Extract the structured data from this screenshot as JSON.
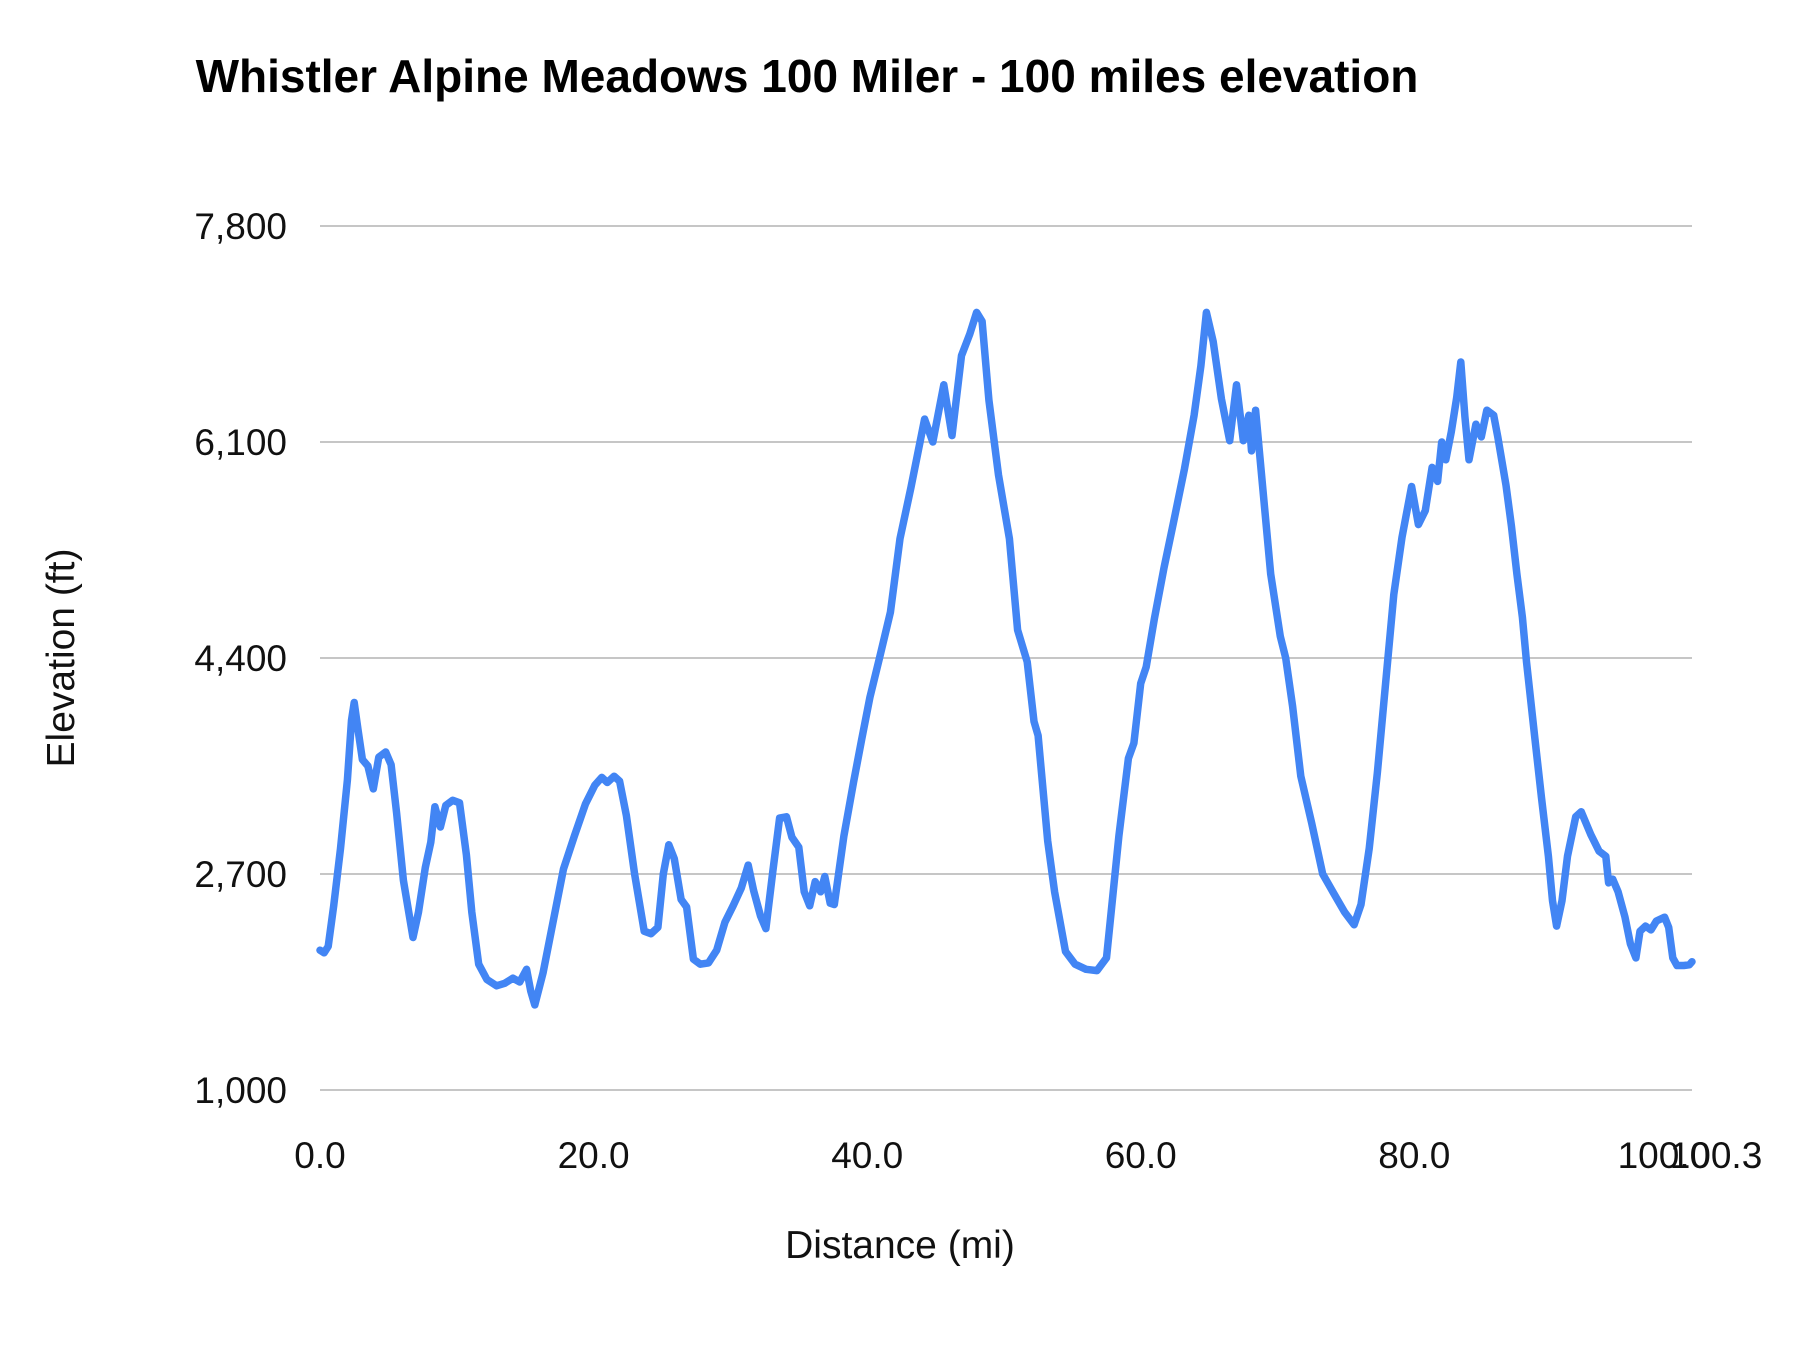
{
  "title": "Whistler Alpine Meadows 100 Miler - 100 miles elevation",
  "chart_data": {
    "type": "line",
    "title": "Whistler Alpine Meadows 100 Miler - 100 miles elevation",
    "xlabel": "Distance (mi)",
    "ylabel": "Elevation (ft)",
    "xlim": [
      0,
      100.3
    ],
    "ylim": [
      1000,
      7800
    ],
    "grid": true,
    "legend": "none",
    "colors": {
      "line": "#4285f4",
      "gridline": "#c6c6c6",
      "text": "#111111",
      "title": "#000000",
      "background": "#ffffff"
    },
    "y_ticks": [
      {
        "value": 1000,
        "label": "1,000"
      },
      {
        "value": 2700,
        "label": "2,700"
      },
      {
        "value": 4400,
        "label": "4,400"
      },
      {
        "value": 6100,
        "label": "6,100"
      },
      {
        "value": 7800,
        "label": "7,800"
      }
    ],
    "x_ticks": [
      {
        "value": 0,
        "label": "0.0",
        "dx": 0
      },
      {
        "value": 20,
        "label": "20.0",
        "dx": 0
      },
      {
        "value": 40,
        "label": "40.0",
        "dx": 0
      },
      {
        "value": 60,
        "label": "60.0",
        "dx": 0
      },
      {
        "value": 80,
        "label": "80.0",
        "dx": 0
      },
      {
        "value": 100,
        "label": "100.0",
        "dx": -24
      },
      {
        "value": 100.3,
        "label": "100.3",
        "dx": 24
      }
    ],
    "series": [
      {
        "name": "elevation",
        "points": [
          [
            0,
            2100
          ],
          [
            0.3,
            2080
          ],
          [
            0.6,
            2130
          ],
          [
            1.0,
            2450
          ],
          [
            1.5,
            2900
          ],
          [
            2.0,
            3440
          ],
          [
            2.3,
            3910
          ],
          [
            2.5,
            4050
          ],
          [
            2.8,
            3820
          ],
          [
            3.1,
            3600
          ],
          [
            3.5,
            3550
          ],
          [
            3.9,
            3370
          ],
          [
            4.3,
            3620
          ],
          [
            4.8,
            3660
          ],
          [
            5.2,
            3560
          ],
          [
            5.6,
            3180
          ],
          [
            6.1,
            2650
          ],
          [
            6.8,
            2200
          ],
          [
            7.2,
            2400
          ],
          [
            7.7,
            2750
          ],
          [
            8.1,
            2950
          ],
          [
            8.4,
            3230
          ],
          [
            8.8,
            3070
          ],
          [
            9.2,
            3240
          ],
          [
            9.7,
            3280
          ],
          [
            10.2,
            3260
          ],
          [
            10.7,
            2850
          ],
          [
            11.1,
            2400
          ],
          [
            11.6,
            1990
          ],
          [
            12.2,
            1870
          ],
          [
            12.9,
            1820
          ],
          [
            13.5,
            1840
          ],
          [
            14.1,
            1880
          ],
          [
            14.6,
            1850
          ],
          [
            15.1,
            1950
          ],
          [
            15.4,
            1780
          ],
          [
            15.7,
            1670
          ],
          [
            16.3,
            1920
          ],
          [
            17.0,
            2300
          ],
          [
            17.8,
            2740
          ],
          [
            18.6,
            3000
          ],
          [
            19.4,
            3250
          ],
          [
            20.1,
            3400
          ],
          [
            20.6,
            3460
          ],
          [
            21.0,
            3420
          ],
          [
            21.5,
            3470
          ],
          [
            21.9,
            3430
          ],
          [
            22.4,
            3160
          ],
          [
            23.0,
            2700
          ],
          [
            23.7,
            2250
          ],
          [
            24.2,
            2230
          ],
          [
            24.7,
            2280
          ],
          [
            25.1,
            2700
          ],
          [
            25.5,
            2930
          ],
          [
            25.9,
            2820
          ],
          [
            26.4,
            2500
          ],
          [
            26.8,
            2440
          ],
          [
            27.3,
            2030
          ],
          [
            27.8,
            1990
          ],
          [
            28.4,
            2000
          ],
          [
            29.0,
            2100
          ],
          [
            29.6,
            2320
          ],
          [
            30.2,
            2450
          ],
          [
            30.8,
            2590
          ],
          [
            31.3,
            2770
          ],
          [
            31.7,
            2570
          ],
          [
            32.2,
            2370
          ],
          [
            32.6,
            2270
          ],
          [
            33.1,
            2720
          ],
          [
            33.6,
            3140
          ],
          [
            34.1,
            3150
          ],
          [
            34.5,
            2990
          ],
          [
            35.0,
            2910
          ],
          [
            35.4,
            2560
          ],
          [
            35.8,
            2450
          ],
          [
            36.2,
            2640
          ],
          [
            36.6,
            2560
          ],
          [
            36.9,
            2680
          ],
          [
            37.3,
            2470
          ],
          [
            37.6,
            2460
          ],
          [
            38.3,
            3000
          ],
          [
            39.0,
            3420
          ],
          [
            39.6,
            3760
          ],
          [
            40.2,
            4090
          ],
          [
            40.9,
            4400
          ],
          [
            41.7,
            4760
          ],
          [
            42.4,
            5340
          ],
          [
            43.2,
            5740
          ],
          [
            44.2,
            6280
          ],
          [
            44.8,
            6100
          ],
          [
            45.6,
            6550
          ],
          [
            46.2,
            6150
          ],
          [
            46.9,
            6780
          ],
          [
            47.5,
            6950
          ],
          [
            48.0,
            7120
          ],
          [
            48.4,
            7050
          ],
          [
            48.9,
            6430
          ],
          [
            49.6,
            5840
          ],
          [
            50.4,
            5340
          ],
          [
            51.0,
            4620
          ],
          [
            51.7,
            4370
          ],
          [
            52.2,
            3900
          ],
          [
            52.5,
            3790
          ],
          [
            53.2,
            2960
          ],
          [
            53.7,
            2560
          ],
          [
            54.5,
            2090
          ],
          [
            55.2,
            1990
          ],
          [
            56.0,
            1950
          ],
          [
            56.8,
            1940
          ],
          [
            57.5,
            2040
          ],
          [
            58.4,
            3000
          ],
          [
            59.1,
            3610
          ],
          [
            59.5,
            3730
          ],
          [
            60.0,
            4200
          ],
          [
            60.4,
            4330
          ],
          [
            61.0,
            4710
          ],
          [
            61.7,
            5110
          ],
          [
            62.4,
            5470
          ],
          [
            63.2,
            5890
          ],
          [
            63.9,
            6310
          ],
          [
            64.4,
            6700
          ],
          [
            64.8,
            7120
          ],
          [
            65.3,
            6890
          ],
          [
            65.9,
            6440
          ],
          [
            66.5,
            6110
          ],
          [
            67.0,
            6550
          ],
          [
            67.5,
            6110
          ],
          [
            67.9,
            6310
          ],
          [
            68.1,
            6030
          ],
          [
            68.4,
            6350
          ],
          [
            68.9,
            5760
          ],
          [
            69.5,
            5060
          ],
          [
            70.2,
            4570
          ],
          [
            70.6,
            4400
          ],
          [
            71.1,
            4020
          ],
          [
            71.7,
            3470
          ],
          [
            72.5,
            3100
          ],
          [
            73.3,
            2700
          ],
          [
            74.1,
            2550
          ],
          [
            74.9,
            2400
          ],
          [
            75.6,
            2300
          ],
          [
            76.1,
            2460
          ],
          [
            76.7,
            2900
          ],
          [
            77.3,
            3500
          ],
          [
            77.9,
            4200
          ],
          [
            78.5,
            4900
          ],
          [
            79.1,
            5350
          ],
          [
            79.8,
            5750
          ],
          [
            80.3,
            5450
          ],
          [
            80.8,
            5560
          ],
          [
            81.3,
            5900
          ],
          [
            81.7,
            5790
          ],
          [
            82.0,
            6100
          ],
          [
            82.3,
            5960
          ],
          [
            82.7,
            6180
          ],
          [
            83.1,
            6450
          ],
          [
            83.4,
            6730
          ],
          [
            83.7,
            6300
          ],
          [
            84.0,
            5960
          ],
          [
            84.5,
            6240
          ],
          [
            84.9,
            6140
          ],
          [
            85.3,
            6350
          ],
          [
            85.8,
            6310
          ],
          [
            86.1,
            6140
          ],
          [
            86.7,
            5760
          ],
          [
            87.1,
            5440
          ],
          [
            87.5,
            5060
          ],
          [
            87.9,
            4720
          ],
          [
            88.2,
            4370
          ],
          [
            88.8,
            3780
          ],
          [
            89.3,
            3300
          ],
          [
            89.8,
            2840
          ],
          [
            90.1,
            2490
          ],
          [
            90.4,
            2290
          ],
          [
            90.8,
            2490
          ],
          [
            91.2,
            2840
          ],
          [
            91.8,
            3150
          ],
          [
            92.2,
            3190
          ],
          [
            92.9,
            3010
          ],
          [
            93.5,
            2880
          ],
          [
            94.0,
            2840
          ],
          [
            94.2,
            2630
          ],
          [
            94.5,
            2660
          ],
          [
            94.9,
            2560
          ],
          [
            95.4,
            2360
          ],
          [
            95.8,
            2150
          ],
          [
            96.2,
            2040
          ],
          [
            96.5,
            2250
          ],
          [
            96.9,
            2290
          ],
          [
            97.3,
            2260
          ],
          [
            97.7,
            2330
          ],
          [
            98.3,
            2360
          ],
          [
            98.6,
            2280
          ],
          [
            98.9,
            2040
          ],
          [
            99.2,
            1980
          ],
          [
            99.7,
            1980
          ],
          [
            100.1,
            1985
          ],
          [
            100.3,
            2010
          ]
        ]
      }
    ]
  }
}
